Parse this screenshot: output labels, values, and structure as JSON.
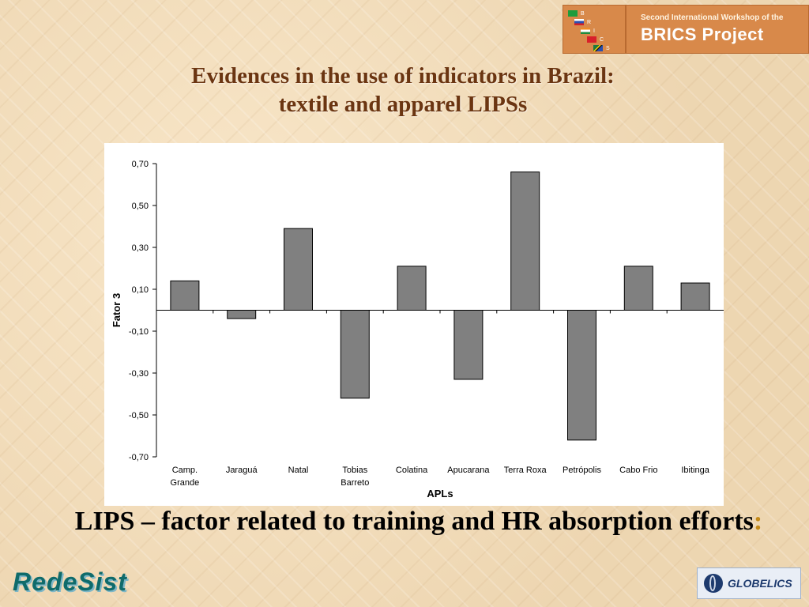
{
  "header": {
    "title_line1": "Evidences in the use of indicators in Brazil:",
    "title_line2": "textile and apparel LIPSs"
  },
  "brics_logo": {
    "top_text": "Second International Workshop of the",
    "main_text": "BRICS Project",
    "letters": [
      "B",
      "R",
      "I",
      "C",
      "S"
    ],
    "bg_color": "#d8894a"
  },
  "chart_data": {
    "type": "bar",
    "categories": [
      "Camp. Grande",
      "Jaraguá",
      "Natal",
      "Tobias Barreto",
      "Colatina",
      "Apucarana",
      "Terra Roxa",
      "Petrópolis",
      "Cabo Frio",
      "Ibitinga"
    ],
    "category_lines": [
      [
        "Camp.",
        "Grande"
      ],
      [
        "Jaraguá"
      ],
      [
        "Natal"
      ],
      [
        "Tobias",
        "Barreto"
      ],
      [
        "Colatina"
      ],
      [
        "Apucarana"
      ],
      [
        "Terra Roxa"
      ],
      [
        "Petrópolis"
      ],
      [
        "Cabo Frio"
      ],
      [
        "Ibitinga"
      ]
    ],
    "values": [
      0.14,
      -0.04,
      0.39,
      -0.42,
      0.21,
      -0.33,
      0.66,
      -0.62,
      0.21,
      0.13
    ],
    "xlabel": "APLs",
    "ylabel": "Fator 3",
    "ylim": [
      -0.7,
      0.7
    ],
    "yticks": [
      0.7,
      0.5,
      0.3,
      0.1,
      -0.1,
      -0.3,
      -0.5,
      -0.7
    ],
    "ytick_labels": [
      "0,70",
      "0,50",
      "0,30",
      "0,10",
      "-0,10",
      "-0,30",
      "-0,50",
      "-0,70"
    ],
    "bar_color": "#808080",
    "grid": false
  },
  "caption": {
    "text": "LIPS – factor related to training and HR absorption efforts",
    "colon": ":"
  },
  "footer": {
    "left_logo": "RedeSist",
    "right_logo": "GLOBELICS"
  }
}
